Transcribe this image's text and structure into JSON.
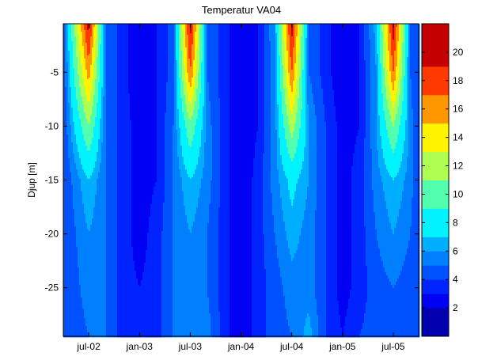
{
  "chart_data": {
    "type": "heatmap",
    "subtype": "filled-contour",
    "title": "Temperatur VA04",
    "xlabel": "",
    "ylabel": "Djup [m]",
    "x_ticks": [
      "jul-02",
      "jan-03",
      "jul-03",
      "jan-04",
      "jul-04",
      "jan-05",
      "jul-05"
    ],
    "y_ticks": [
      -5,
      -10,
      -15,
      -20,
      -25
    ],
    "ylim": [
      -29.5,
      -0.5
    ],
    "depths": [
      -0.5,
      -5,
      -10,
      -15,
      -20,
      -25,
      -29.5
    ],
    "times": [
      "2002-04",
      "2002-07",
      "2002-09",
      "2002-11",
      "2003-01",
      "2003-03",
      "2003-05",
      "2003-07",
      "2003-09",
      "2003-11",
      "2004-01",
      "2004-03",
      "2004-05",
      "2004-07",
      "2004-09",
      "2004-11",
      "2005-01",
      "2005-03",
      "2005-05",
      "2005-07",
      "2005-09",
      "2005-10"
    ],
    "temperature": [
      [
        4,
        20,
        5,
        3.5,
        2,
        3,
        4.5,
        20,
        5,
        3.5,
        2,
        3,
        6,
        20,
        5,
        3.5,
        2,
        3,
        6.5,
        20,
        5,
        4
      ],
      [
        4,
        16,
        5,
        3.5,
        2,
        3,
        4.5,
        17,
        5,
        3.5,
        2,
        3,
        5.5,
        17,
        5,
        3.5,
        2,
        3,
        6,
        17,
        5,
        4
      ],
      [
        4,
        11,
        5,
        3.5,
        2.5,
        3,
        5,
        10.5,
        5.5,
        3.5,
        2,
        3,
        5.5,
        12,
        6,
        4,
        2.5,
        3,
        6,
        11,
        5.5,
        4
      ],
      [
        4,
        7,
        5,
        3.5,
        2.5,
        3,
        5,
        7,
        5.5,
        3.5,
        2,
        3.5,
        5.5,
        7.5,
        6,
        4,
        2.5,
        3.5,
        5.5,
        7,
        5.5,
        4
      ],
      [
        4,
        6,
        5,
        3.5,
        2.5,
        3.5,
        5,
        6,
        5,
        3.5,
        2,
        3.5,
        5,
        6.5,
        5.5,
        4,
        2.5,
        3.5,
        5,
        6,
        5,
        4
      ],
      [
        4,
        5.5,
        5,
        3.5,
        3,
        3.5,
        5,
        5.5,
        5,
        3.5,
        2,
        3.5,
        4.5,
        5.5,
        5.5,
        4,
        2.5,
        3.5,
        4.5,
        5,
        4.5,
        4
      ],
      [
        4,
        5,
        5,
        3.5,
        3,
        3.5,
        5,
        5.5,
        5.5,
        3.5,
        2,
        3.5,
        4.5,
        5,
        6.5,
        4,
        3,
        4,
        4.5,
        5,
        4.5,
        4
      ]
    ],
    "contour_levels": [
      2,
      3,
      4,
      5,
      6,
      7,
      9,
      11,
      13,
      15,
      17,
      19
    ],
    "colorbar": {
      "range": [
        0,
        22
      ],
      "ticks": [
        2,
        4,
        6,
        8,
        10,
        12,
        14,
        16,
        18,
        20
      ],
      "colormap": "jet"
    }
  }
}
